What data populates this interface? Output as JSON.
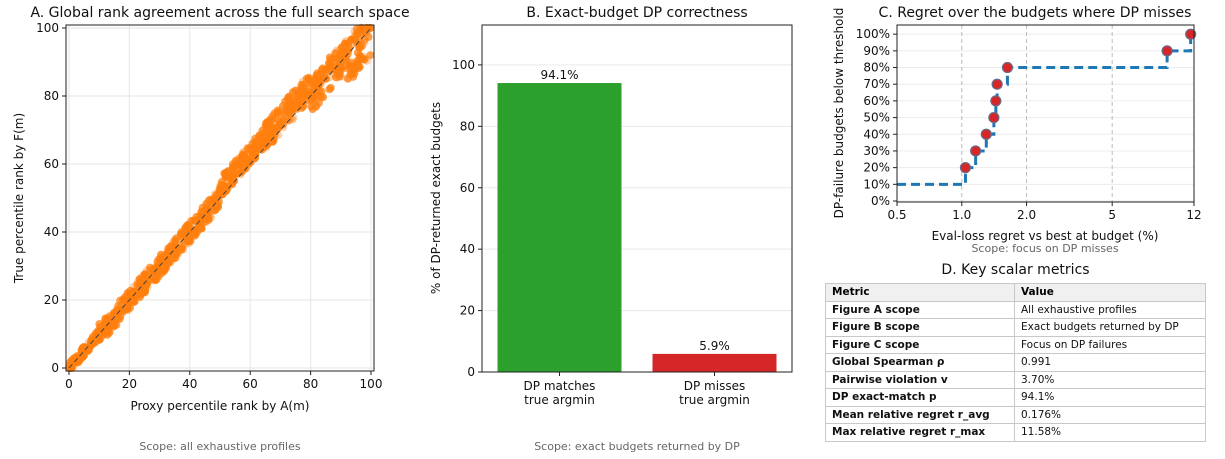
{
  "chart_data": [
    {
      "type": "scatter",
      "title": "A. Global rank agreement across the full search space",
      "xlabel": "Proxy percentile rank by A(m)",
      "ylabel": "True percentile rank by F(m)",
      "xlim": [
        0,
        100
      ],
      "ylim": [
        0,
        100
      ],
      "xticks": [
        "0",
        "20",
        "40",
        "60",
        "80",
        "100"
      ],
      "yticks": [
        "0",
        "20",
        "40",
        "60",
        "80",
        "100"
      ],
      "reference_line": "y = x (dashed)",
      "caption": "Scope: all exhaustive profiles",
      "color": "#ff7f0e",
      "point_clusters": [
        {
          "x_range": [
            0,
            10
          ],
          "y_center_offset": 0,
          "spread": 1.5
        },
        {
          "x_range": [
            10,
            30
          ],
          "y_center_offset": 0,
          "spread": 3
        },
        {
          "x_range": [
            30,
            50
          ],
          "y_center_offset": 0,
          "spread": 3
        },
        {
          "x_range": [
            50,
            65
          ],
          "y_center_offset": 3,
          "spread": 3
        },
        {
          "x_range": [
            65,
            80
          ],
          "y_center_offset": 3,
          "spread": 4
        },
        {
          "x_range": [
            80,
            92
          ],
          "y_center_offset": 0,
          "spread": 5
        },
        {
          "x_range": [
            92,
            100
          ],
          "y_center_offset": -2,
          "spread": 7
        }
      ]
    },
    {
      "type": "bar",
      "title": "B. Exact-budget DP correctness",
      "ylabel": "% of DP-returned exact budgets",
      "categories": [
        "DP matches\ntrue argmin",
        "DP misses\ntrue argmin"
      ],
      "values": [
        94.1,
        5.9
      ],
      "value_labels": [
        "94.1%",
        "5.9%"
      ],
      "colors": [
        "#2ca02c",
        "#d62728"
      ],
      "ylim": [
        0,
        113
      ],
      "yticks": [
        "0",
        "20",
        "40",
        "60",
        "80",
        "100"
      ],
      "caption": "Scope: exact budgets returned by DP"
    },
    {
      "type": "line",
      "title": "C. Regret over the budgets where DP misses",
      "xlabel": "Eval-loss regret vs best at budget (%)",
      "ylabel": "DP-failure budgets below threshold",
      "xscale": "log",
      "xticks": [
        "0.5",
        "1.0",
        "2.0",
        "5",
        "12"
      ],
      "yticks": [
        "0%",
        "10%",
        "20%",
        "30%",
        "40%",
        "50%",
        "60%",
        "70%",
        "80%",
        "90%",
        "100%"
      ],
      "step_x": [
        0.5,
        1.04,
        1.16,
        1.3,
        1.41,
        1.44,
        1.46,
        1.63,
        9.0,
        11.58
      ],
      "step_y": [
        10,
        20,
        30,
        40,
        50,
        60,
        70,
        80,
        90,
        100
      ],
      "markers": [
        {
          "x": 1.04,
          "y": 20
        },
        {
          "x": 1.16,
          "y": 30
        },
        {
          "x": 1.3,
          "y": 40
        },
        {
          "x": 1.41,
          "y": 50
        },
        {
          "x": 1.44,
          "y": 60
        },
        {
          "x": 1.46,
          "y": 70
        },
        {
          "x": 1.63,
          "y": 80
        },
        {
          "x": 9.0,
          "y": 90
        },
        {
          "x": 11.58,
          "y": 100
        }
      ],
      "vlines": [
        1.0,
        2.0,
        5.0
      ],
      "line_color": "#1f77b4",
      "marker_color": "#d62728",
      "caption": "Scope: focus on DP misses"
    },
    {
      "type": "table",
      "title": "D. Key scalar metrics",
      "columns": [
        "Metric",
        "Value"
      ],
      "rows": [
        [
          "Figure A scope",
          "All exhaustive profiles"
        ],
        [
          "Figure B scope",
          "Exact budgets returned by DP"
        ],
        [
          "Figure C scope",
          "Focus on DP failures"
        ],
        [
          "Global Spearman ρ",
          "0.991"
        ],
        [
          "Pairwise violation v",
          "3.70%"
        ],
        [
          "DP exact-match p",
          "94.1%"
        ],
        [
          "Mean relative regret r_avg",
          "0.176%"
        ],
        [
          "Max relative regret r_max",
          "11.58%"
        ]
      ]
    }
  ]
}
